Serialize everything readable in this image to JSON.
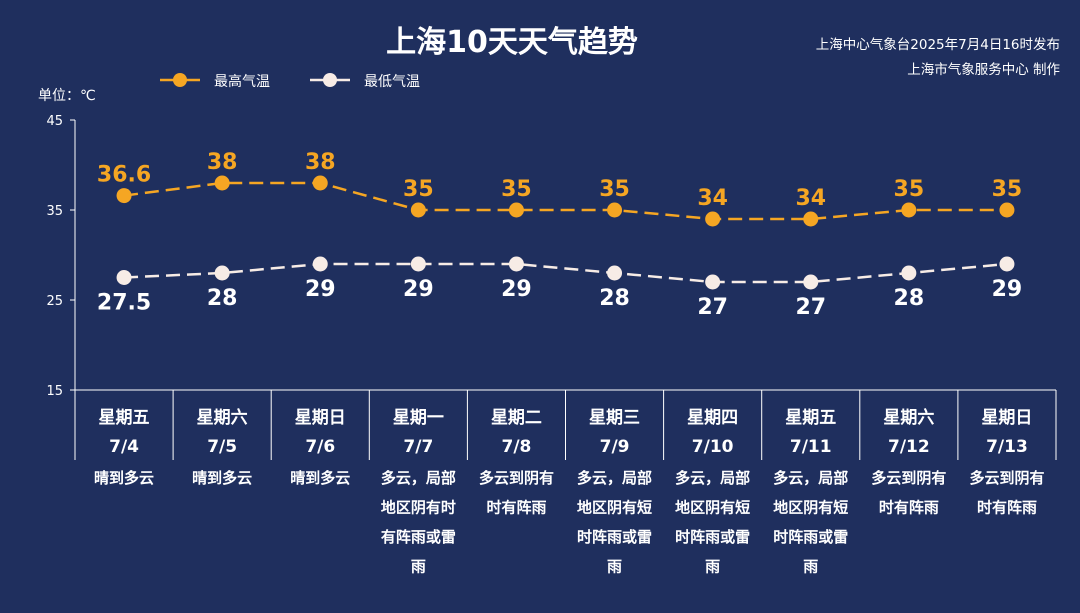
{
  "header": {
    "title": "上海10天天气趋势",
    "publisher_line1": "上海中心气象台2025年7月4日16时发布",
    "publisher_line2": "上海市气象服务中心 制作",
    "unit_label": "单位：℃"
  },
  "legend": [
    {
      "name": "最高气温",
      "color": "#f5a623"
    },
    {
      "name": "最低气温",
      "color": "#f7ece6"
    }
  ],
  "chart_data": {
    "type": "line",
    "title": "上海10天天气趋势",
    "ylabel": "单位：℃",
    "ylim": [
      15,
      45
    ],
    "yticks": [
      15,
      25,
      35,
      45
    ],
    "legend_position": "top-left",
    "categories": [
      "7/4",
      "7/5",
      "7/6",
      "7/7",
      "7/8",
      "7/9",
      "7/10",
      "7/11",
      "7/12",
      "7/13"
    ],
    "weekdays": [
      "星期五",
      "星期六",
      "星期日",
      "星期一",
      "星期二",
      "星期三",
      "星期四",
      "星期五",
      "星期六",
      "星期日"
    ],
    "weather": [
      [
        "晴到多云"
      ],
      [
        "晴到多云"
      ],
      [
        "晴到多云"
      ],
      [
        "多云，局部",
        "地区阴有时",
        "有阵雨或雷",
        "雨"
      ],
      [
        "多云到阴有",
        "时有阵雨"
      ],
      [
        "多云，局部",
        "地区阴有短",
        "时阵雨或雷",
        "雨"
      ],
      [
        "多云，局部",
        "地区阴有短",
        "时阵雨或雷",
        "雨"
      ],
      [
        "多云，局部",
        "地区阴有短",
        "时阵雨或雷",
        "雨"
      ],
      [
        "多云到阴有",
        "时有阵雨"
      ],
      [
        "多云到阴有",
        "时有阵雨"
      ]
    ],
    "series": [
      {
        "name": "最高气温",
        "color": "#f5a623",
        "values": [
          36.6,
          38,
          38,
          35,
          35,
          35,
          34,
          34,
          35,
          35
        ],
        "labels": [
          "36.6",
          "38",
          "38",
          "35",
          "35",
          "35",
          "34",
          "34",
          "35",
          "35"
        ]
      },
      {
        "name": "最低气温",
        "color": "#f7ece6",
        "values": [
          27.5,
          28,
          29,
          29,
          29,
          28,
          27,
          27,
          28,
          29
        ],
        "labels": [
          "27.5",
          "28",
          "29",
          "29",
          "29",
          "28",
          "27",
          "27",
          "28",
          "29"
        ]
      }
    ]
  }
}
